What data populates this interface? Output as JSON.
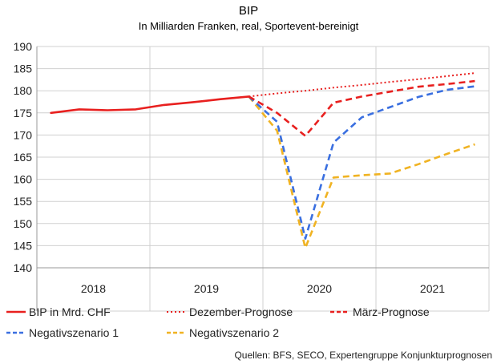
{
  "chart_data": {
    "type": "line",
    "title": "BIP",
    "subtitle": "In Milliarden Franken, real, Sportevent-bereinigt",
    "ylim": [
      140,
      190
    ],
    "yticks": [
      140,
      145,
      150,
      155,
      160,
      165,
      170,
      175,
      180,
      185,
      190
    ],
    "grid": "horizontal and year separators",
    "x_unit": "quarter",
    "years": [
      "2018",
      "2019",
      "2020",
      "2021"
    ],
    "series": [
      {
        "name": "BIP in Mrd. CHF",
        "style": "solid",
        "color": "#e8201f",
        "x": [
          "2018-Q1",
          "2018-Q2",
          "2018-Q3",
          "2018-Q4",
          "2019-Q1",
          "2019-Q2",
          "2019-Q3",
          "2019-Q4"
        ],
        "values": [
          175.0,
          175.8,
          175.6,
          175.8,
          176.8,
          177.4,
          178.1,
          178.7
        ]
      },
      {
        "name": "Dezember-Prognose",
        "style": "dotted",
        "color": "#e8201f",
        "x": [
          "2019-Q4",
          "2020-Q1",
          "2020-Q2",
          "2020-Q3",
          "2020-Q4",
          "2021-Q1",
          "2021-Q2",
          "2021-Q3",
          "2021-Q4"
        ],
        "values": [
          178.7,
          179.4,
          180.0,
          180.7,
          181.3,
          182.0,
          182.6,
          183.3,
          184.0
        ]
      },
      {
        "name": "März-Prognose",
        "style": "dashed",
        "color": "#e8201f",
        "x": [
          "2019-Q4",
          "2020-Q1",
          "2020-Q2",
          "2020-Q3",
          "2020-Q4",
          "2021-Q1",
          "2021-Q2",
          "2021-Q3",
          "2021-Q4"
        ],
        "values": [
          178.7,
          175.0,
          169.8,
          177.3,
          178.7,
          179.8,
          180.9,
          181.5,
          182.2
        ]
      },
      {
        "name": "Negativszenario 1",
        "style": "dashed",
        "color": "#3a6fe0",
        "x": [
          "2019-Q4",
          "2020-Q1",
          "2020-Q2",
          "2020-Q3",
          "2020-Q4",
          "2021-Q1",
          "2021-Q2",
          "2021-Q3",
          "2021-Q4"
        ],
        "values": [
          178.7,
          173.0,
          146.6,
          168.3,
          174.0,
          176.3,
          178.6,
          180.2,
          181.0
        ]
      },
      {
        "name": "Negativszenario 2",
        "style": "dashed",
        "color": "#f0b323",
        "x": [
          "2019-Q4",
          "2020-Q1",
          "2020-Q2",
          "2020-Q3",
          "2020-Q4",
          "2021-Q1",
          "2021-Q2",
          "2021-Q3",
          "2021-Q4"
        ],
        "values": [
          178.7,
          171.0,
          144.5,
          160.4,
          160.9,
          161.3,
          163.4,
          165.7,
          167.9
        ]
      }
    ],
    "source": "Quellen: BFS, SECO, Expertengruppe Konjunkturprognosen"
  }
}
